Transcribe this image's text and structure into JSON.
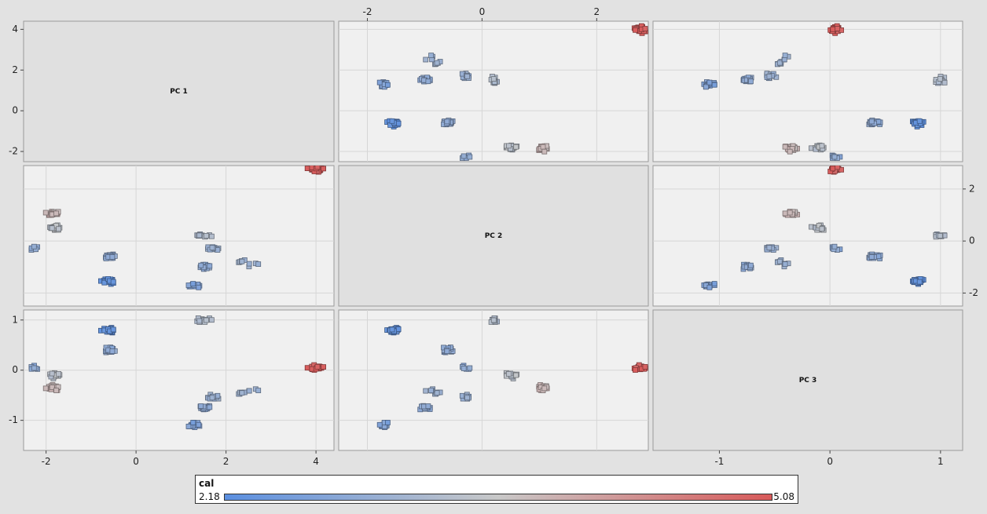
{
  "chart_data": {
    "type": "scatter",
    "variables": [
      "PC 1",
      "PC 2",
      "PC 3"
    ],
    "color_variable": "cal",
    "color_range": [
      2.18,
      5.08
    ],
    "colors": {
      "low": "#5b8fe0",
      "mid": "#c8c8c8",
      "high": "#d85a5a",
      "background": "#e2e2e2",
      "plot_bg": "#f0f0f0",
      "diagonal_bg": "#e0e0e0"
    },
    "axes": {
      "pc1": {
        "range": [
          -2.5,
          4.4
        ],
        "ticks": [
          "-2",
          "0",
          "2",
          "4"
        ]
      },
      "pc2": {
        "range": [
          -2.5,
          2.9
        ],
        "ticks": [
          "-2",
          "0",
          "2"
        ]
      },
      "pc3": {
        "range": [
          -1.6,
          1.2
        ],
        "ticks": [
          "-1",
          "0",
          "1"
        ]
      }
    },
    "legend": {
      "title": "cal",
      "min_label": "2.18",
      "max_label": "5.08"
    },
    "clusters": [
      {
        "pc1": 4.0,
        "pc2": 2.75,
        "pc3": 0.05,
        "cal": 5.0,
        "n": 28
      },
      {
        "pc1": -1.85,
        "pc2": 1.05,
        "pc3": -0.35,
        "cal": 3.9,
        "n": 22
      },
      {
        "pc1": -1.8,
        "pc2": 0.5,
        "pc3": -0.1,
        "cal": 3.5,
        "n": 20
      },
      {
        "pc1": -2.25,
        "pc2": -0.3,
        "pc3": 0.05,
        "cal": 2.9,
        "n": 6
      },
      {
        "pc1": -0.55,
        "pc2": -0.6,
        "pc3": 0.4,
        "cal": 2.9,
        "n": 18
      },
      {
        "pc1": -0.6,
        "pc2": -1.55,
        "pc3": 0.8,
        "cal": 2.3,
        "n": 22
      },
      {
        "pc1": 1.3,
        "pc2": -1.7,
        "pc3": -1.1,
        "cal": 2.7,
        "n": 18
      },
      {
        "pc1": 1.5,
        "pc2": -1.0,
        "pc3": -0.75,
        "cal": 2.9,
        "n": 18
      },
      {
        "pc1": 1.7,
        "pc2": -0.3,
        "pc3": -0.55,
        "cal": 3.0,
        "n": 14
      },
      {
        "pc1": 2.3,
        "pc2": -0.8,
        "pc3": -0.45,
        "cal": 3.1,
        "n": 6
      },
      {
        "pc1": 1.5,
        "pc2": 0.2,
        "pc3": 1.0,
        "cal": 3.3,
        "n": 14
      },
      {
        "pc1": 2.6,
        "pc2": -0.9,
        "pc3": -0.4,
        "cal": 3.0,
        "n": 4
      }
    ]
  }
}
